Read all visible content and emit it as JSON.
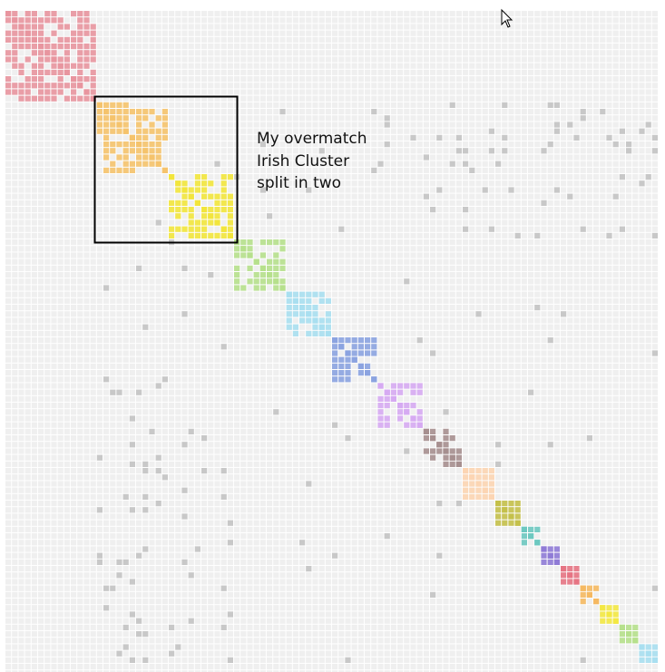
{
  "annotation": {
    "lines": [
      "My overmatch",
      "Irish Cluster",
      "split in two"
    ]
  }
}
